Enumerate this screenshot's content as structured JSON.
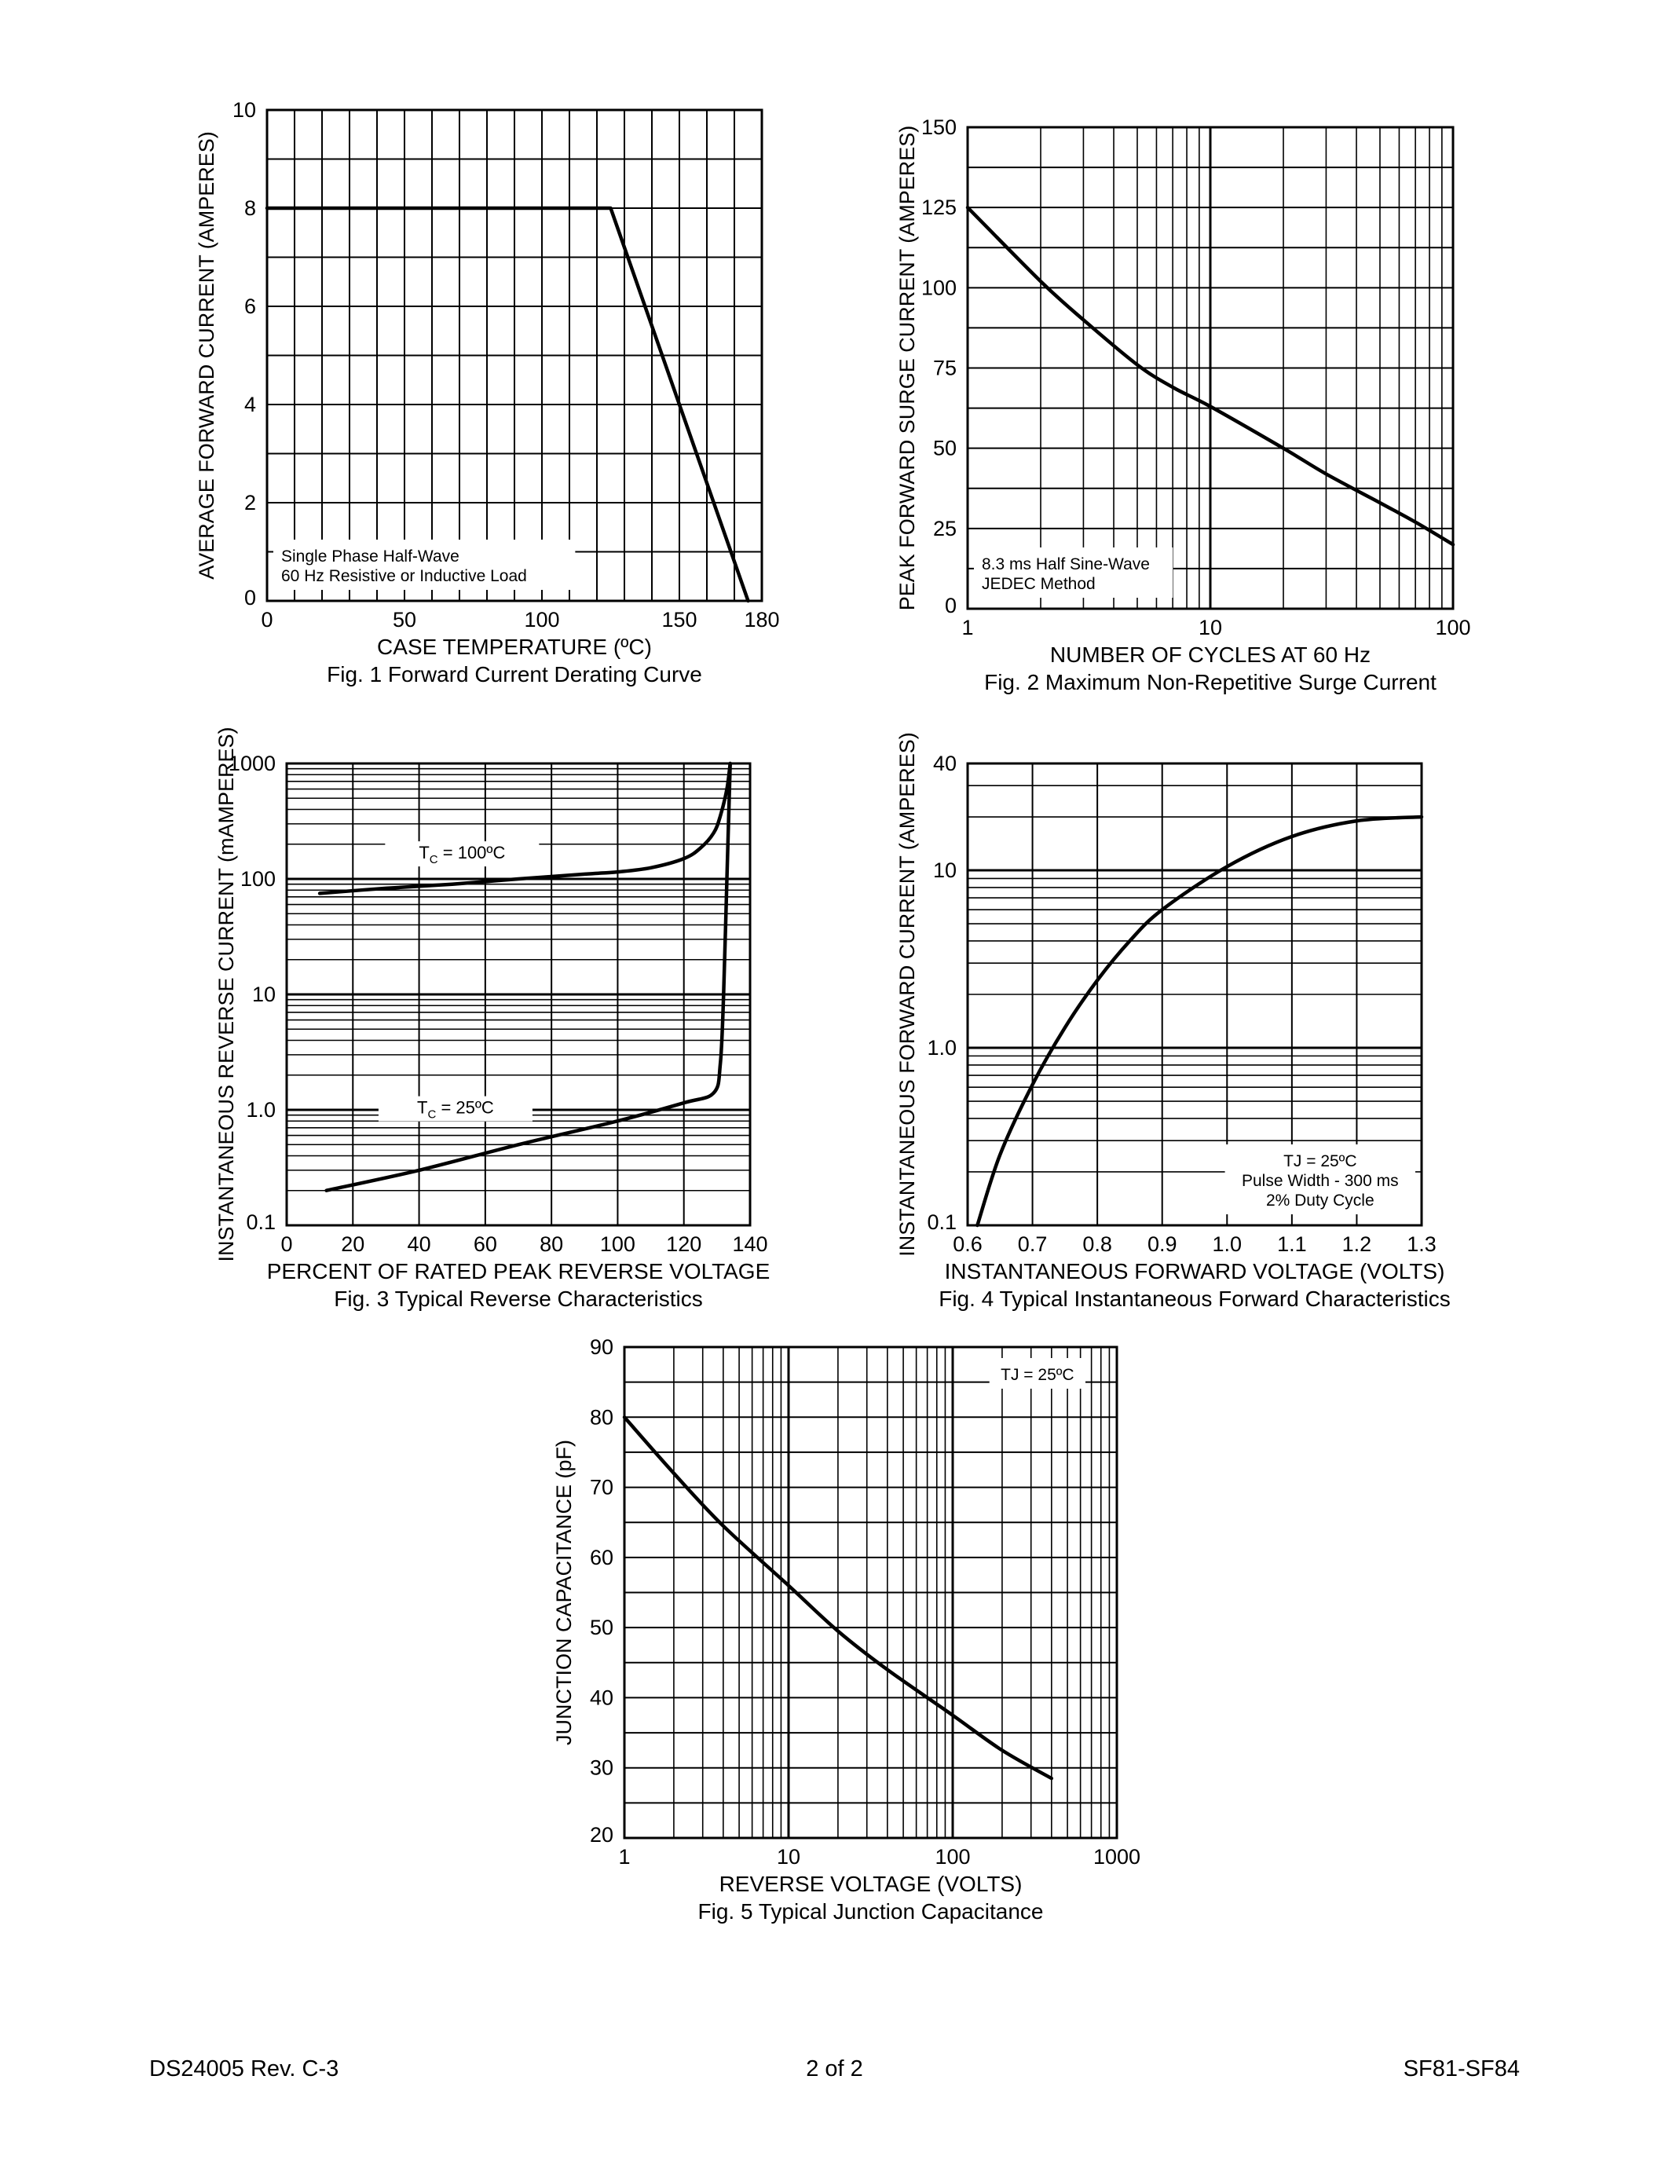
{
  "footer": {
    "left": "DS24005 Rev. C-3",
    "center": "2 of 2",
    "right": "SF81-SF84"
  },
  "chart_data": [
    {
      "id": "fig1",
      "type": "line",
      "caption": "Fig. 1  Forward Current Derating Curve",
      "xlabel": "CASE TEMPERATURE (ºC)",
      "ylabel": "AVERAGE FORWARD CURRENT (AMPERES)",
      "xscale": "linear",
      "yscale": "linear",
      "xlim": [
        0,
        180
      ],
      "ylim": [
        0,
        10
      ],
      "xticks": [
        0,
        50,
        100,
        150,
        180
      ],
      "yticks": [
        0,
        2,
        4,
        6,
        8,
        10
      ],
      "grid": true,
      "annotation": [
        "Single Phase Half-Wave",
        "60 Hz Resistive or Inductive Load"
      ],
      "annotation_position": "bottom-left",
      "series": [
        {
          "x": [
            0,
            125,
            175
          ],
          "y": [
            8,
            8,
            0
          ]
        }
      ]
    },
    {
      "id": "fig2",
      "type": "line",
      "caption": "Fig. 2  Maximum Non-Repetitive Surge Current",
      "xlabel": "NUMBER OF CYCLES AT 60 Hz",
      "ylabel": "PEAK FORWARD SURGE CURRENT (AMPERES)",
      "xscale": "log",
      "yscale": "linear",
      "xlim": [
        1,
        100
      ],
      "ylim": [
        0,
        150
      ],
      "xticks": [
        1,
        10,
        100
      ],
      "yticks": [
        0,
        25,
        50,
        75,
        100,
        125,
        150
      ],
      "grid": true,
      "annotation": [
        "8.3 ms Half Sine-Wave",
        "JEDEC Method"
      ],
      "annotation_position": "bottom-left",
      "series": [
        {
          "x": [
            1,
            2,
            3,
            5,
            7,
            10,
            20,
            30,
            50,
            70,
            100
          ],
          "y": [
            125,
            102,
            90,
            76,
            69,
            63,
            50,
            42,
            33,
            27,
            20
          ]
        }
      ]
    },
    {
      "id": "fig3",
      "type": "line",
      "caption": "Fig. 3  Typical Reverse Characteristics",
      "xlabel": "PERCENT OF RATED PEAK REVERSE VOLTAGE",
      "ylabel": "INSTANTANEOUS REVERSE CURRENT (mAMPERES)",
      "xscale": "linear",
      "yscale": "log",
      "xlim": [
        0,
        140
      ],
      "ylim": [
        0.1,
        1000
      ],
      "xticks": [
        0,
        20,
        40,
        60,
        80,
        100,
        120,
        140
      ],
      "yticks": [
        0.1,
        1.0,
        10,
        100,
        1000
      ],
      "ytick_labels": [
        "0.1",
        "1.0",
        "10",
        "100",
        "1000"
      ],
      "grid": true,
      "series": [
        {
          "name": "TC = 100ºC",
          "label_parts": [
            "T",
            "C",
            " = 100ºC"
          ],
          "label_x": 53,
          "label_y": 150,
          "x": [
            10,
            30,
            50,
            70,
            90,
            100,
            110,
            120,
            125,
            129,
            131,
            133,
            134
          ],
          "y": [
            75,
            83,
            90,
            100,
            110,
            115,
            125,
            150,
            185,
            250,
            350,
            600,
            1000
          ]
        },
        {
          "name": "TC = 25ºC",
          "label_parts": [
            "T",
            "C",
            " = 25ºC"
          ],
          "label_x": 51,
          "label_y": 0.93,
          "x": [
            12,
            40,
            70,
            100,
            120,
            129,
            131,
            132,
            133,
            134
          ],
          "y": [
            0.2,
            0.3,
            0.5,
            0.8,
            1.15,
            1.4,
            2.5,
            10,
            100,
            1000
          ]
        }
      ]
    },
    {
      "id": "fig4",
      "type": "line",
      "caption": "Fig. 4  Typical Instantaneous Forward Characteristics",
      "xlabel": "INSTANTANEOUS FORWARD VOLTAGE (VOLTS)",
      "ylabel": "INSTANTANEOUS FORWARD CURRENT (AMPERES)",
      "xscale": "linear",
      "yscale": "log",
      "xlim": [
        0.6,
        1.3
      ],
      "ylim": [
        0.1,
        40
      ],
      "xticks": [
        0.6,
        0.7,
        0.8,
        0.9,
        1.0,
        1.1,
        1.2,
        1.3
      ],
      "xtick_labels": [
        "0.6",
        "0.7",
        "0.8",
        "0.9",
        "1.0",
        "1.1",
        "1.2",
        "1.3"
      ],
      "yticks": [
        0.1,
        1.0,
        10,
        40
      ],
      "ytick_labels": [
        "0.1",
        "1.0",
        "10",
        "40"
      ],
      "grid": true,
      "annotation": [
        "TJ = 25ºC",
        "Pulse Width - 300 ms",
        "2% Duty Cycle"
      ],
      "annotation_position": "bottom-right",
      "series": [
        {
          "x": [
            0.615,
            0.65,
            0.7,
            0.75,
            0.8,
            0.85,
            0.9,
            1.0,
            1.1,
            1.2,
            1.3
          ],
          "y": [
            0.1,
            0.25,
            0.62,
            1.3,
            2.4,
            4.0,
            6.0,
            10.5,
            15.5,
            19.0,
            20.0
          ]
        }
      ]
    },
    {
      "id": "fig5",
      "type": "line",
      "caption": "Fig. 5 Typical Junction Capacitance",
      "xlabel": "REVERSE VOLTAGE (VOLTS)",
      "ylabel": "JUNCTION CAPACITANCE (pF)",
      "xscale": "log",
      "yscale": "linear",
      "xlim": [
        1,
        1000
      ],
      "ylim": [
        20,
        90
      ],
      "xticks": [
        1,
        10,
        100,
        1000
      ],
      "yticks": [
        20,
        30,
        40,
        50,
        60,
        70,
        80,
        90
      ],
      "grid": true,
      "annotation": [
        "TJ = 25ºC"
      ],
      "annotation_position": "top-right",
      "series": [
        {
          "x": [
            1,
            2,
            4,
            10,
            20,
            40,
            100,
            200,
            400
          ],
          "y": [
            80,
            72,
            64.5,
            56,
            49.5,
            44,
            37.5,
            32.5,
            28.5
          ]
        }
      ]
    }
  ]
}
